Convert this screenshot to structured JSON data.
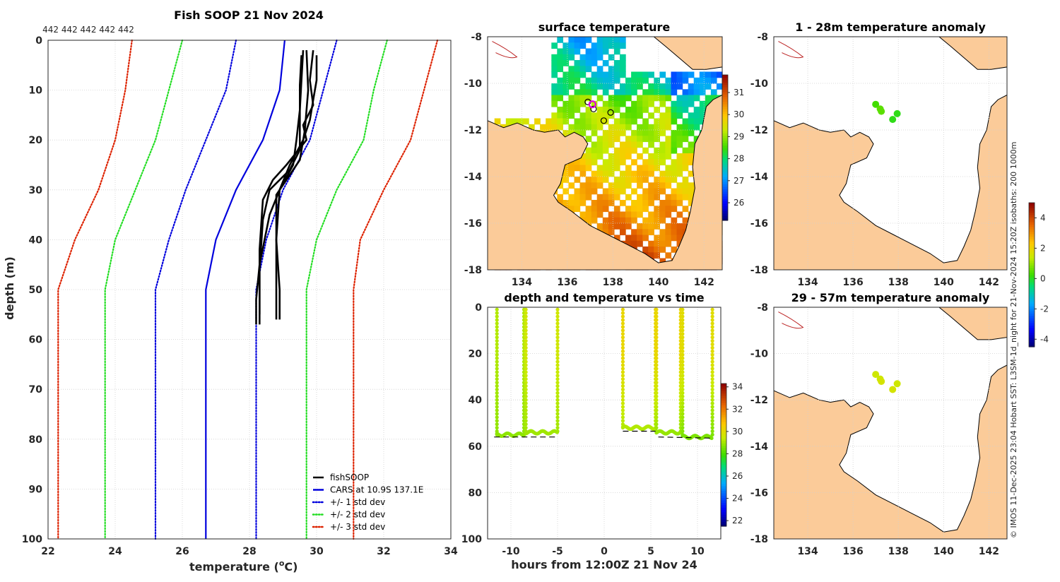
{
  "profile_chart": {
    "title": "Fish SOOP 21 Nov 2024",
    "xlabel": "temperature (",
    "xlabel_sup": "o",
    "xlabel_unit": "C)",
    "ylabel": "depth (m)",
    "profile_ids_label": "442 442 442 442 442"
  },
  "sst_map": {
    "title": "surface temperature"
  },
  "anom_map_1": {
    "title": "1 - 28m temperature anomaly"
  },
  "anom_map_2": {
    "title": "29 - 57m temperature anomaly"
  },
  "time_chart": {
    "title": "depth and temperature vs time",
    "xlabel": "hours from 12:00Z 21 Nov 24"
  },
  "credit": "© IMOS 11-Dec-2025 23:04 Hobart SST: L3SM-1d_night for 21-Nov-2024 15:20Z isobaths: 200  1000m",
  "chart_data": [
    {
      "type": "line",
      "title": "Fish SOOP 21 Nov 2024",
      "xlabel": "temperature (oC)",
      "ylabel": "depth (m)",
      "xlim": [
        22,
        34
      ],
      "ylim": [
        0,
        100
      ],
      "y_reversed": true,
      "xticks": [
        22,
        24,
        26,
        28,
        30,
        32,
        34
      ],
      "yticks": [
        0,
        10,
        20,
        30,
        40,
        50,
        60,
        70,
        80,
        90,
        100
      ],
      "legend": [
        "fishSOOP",
        "CARS at 10.9S 137.1E",
        "+/- 1 std dev",
        "+/- 2 std dev",
        "+/- 3 std dev"
      ],
      "series": [
        {
          "name": "CARS at 10.9S 137.1E",
          "color": "#0000dd",
          "style": "solid",
          "points": [
            [
              29.05,
              0
            ],
            [
              28.9,
              10
            ],
            [
              28.4,
              20
            ],
            [
              27.6,
              30
            ],
            [
              27.0,
              40
            ],
            [
              26.7,
              50
            ],
            [
              26.7,
              100
            ]
          ]
        },
        {
          "name": "-1 std dev",
          "color": "#0000dd",
          "style": "dotted",
          "points": [
            [
              27.6,
              0
            ],
            [
              27.3,
              10
            ],
            [
              26.7,
              20
            ],
            [
              26.1,
              30
            ],
            [
              25.6,
              40
            ],
            [
              25.2,
              50
            ],
            [
              25.2,
              100
            ]
          ]
        },
        {
          "name": "+1 std dev",
          "color": "#0000dd",
          "style": "dotted",
          "points": [
            [
              30.6,
              0
            ],
            [
              30.2,
              10
            ],
            [
              29.8,
              20
            ],
            [
              29.0,
              30
            ],
            [
              28.5,
              40
            ],
            [
              28.2,
              50
            ],
            [
              28.2,
              100
            ]
          ]
        },
        {
          "name": "-2 std dev",
          "color": "#22dd22",
          "style": "dotted",
          "points": [
            [
              26.0,
              0
            ],
            [
              25.8,
              5
            ],
            [
              25.6,
              10
            ],
            [
              25.2,
              20
            ],
            [
              24.6,
              30
            ],
            [
              24.0,
              40
            ],
            [
              23.7,
              50
            ],
            [
              23.7,
              100
            ]
          ]
        },
        {
          "name": "+2 std dev",
          "color": "#22dd22",
          "style": "dotted",
          "points": [
            [
              32.1,
              0
            ],
            [
              31.9,
              5
            ],
            [
              31.7,
              10
            ],
            [
              31.4,
              20
            ],
            [
              30.6,
              30
            ],
            [
              30.0,
              40
            ],
            [
              29.7,
              50
            ],
            [
              29.7,
              100
            ]
          ]
        },
        {
          "name": "-3 std dev",
          "color": "#dd2200",
          "style": "dotted",
          "points": [
            [
              24.5,
              0
            ],
            [
              24.4,
              5
            ],
            [
              24.3,
              10
            ],
            [
              24.0,
              20
            ],
            [
              23.5,
              30
            ],
            [
              22.8,
              40
            ],
            [
              22.3,
              50
            ],
            [
              22.3,
              100
            ]
          ]
        },
        {
          "name": "+3 std dev",
          "color": "#dd2200",
          "style": "dotted",
          "points": [
            [
              33.6,
              0
            ],
            [
              33.4,
              5
            ],
            [
              33.2,
              10
            ],
            [
              32.8,
              20
            ],
            [
              32.0,
              30
            ],
            [
              31.3,
              40
            ],
            [
              31.1,
              50
            ],
            [
              31.1,
              100
            ]
          ]
        },
        {
          "name": "fishSOOP profile 1",
          "color": "#000000",
          "style": "solid",
          "points": [
            [
              29.6,
              2
            ],
            [
              29.55,
              8
            ],
            [
              29.5,
              14
            ],
            [
              29.4,
              20
            ],
            [
              29.3,
              25
            ],
            [
              28.9,
              30
            ],
            [
              28.6,
              35
            ],
            [
              28.3,
              45
            ],
            [
              28.2,
              52
            ],
            [
              28.2,
              57
            ]
          ]
        },
        {
          "name": "fishSOOP profile 2",
          "color": "#000000",
          "style": "solid",
          "points": [
            [
              29.7,
              2
            ],
            [
              29.75,
              10
            ],
            [
              29.65,
              18
            ],
            [
              29.5,
              24
            ],
            [
              29.1,
              28
            ],
            [
              28.8,
              31
            ],
            [
              28.8,
              40
            ],
            [
              28.8,
              50
            ],
            [
              28.8,
              56
            ]
          ]
        },
        {
          "name": "fishSOOP profile 3",
          "color": "#000000",
          "style": "solid",
          "points": [
            [
              29.9,
              2
            ],
            [
              29.8,
              8
            ],
            [
              29.9,
              13
            ],
            [
              29.6,
              17
            ],
            [
              29.7,
              20
            ],
            [
              29.1,
              25
            ],
            [
              28.7,
              28
            ],
            [
              28.4,
              32
            ],
            [
              28.3,
              42
            ],
            [
              28.3,
              50
            ],
            [
              28.3,
              57
            ]
          ]
        },
        {
          "name": "fishSOOP profile 4",
          "color": "#000000",
          "style": "solid",
          "points": [
            [
              30.0,
              3
            ],
            [
              30.0,
              8
            ],
            [
              29.9,
              12
            ],
            [
              29.8,
              16
            ],
            [
              29.6,
              20
            ],
            [
              29.2,
              25
            ],
            [
              28.9,
              30
            ],
            [
              28.8,
              40
            ],
            [
              28.9,
              50
            ],
            [
              28.9,
              56
            ]
          ]
        },
        {
          "name": "fishSOOP profile 5",
          "color": "#000000",
          "style": "solid",
          "points": [
            [
              29.55,
              3
            ],
            [
              29.5,
              9
            ],
            [
              29.5,
              16
            ],
            [
              29.5,
              22
            ],
            [
              29.2,
              26
            ],
            [
              28.6,
              30
            ],
            [
              28.4,
              36
            ],
            [
              28.3,
              46
            ],
            [
              28.3,
              55
            ]
          ]
        }
      ]
    },
    {
      "type": "heatmap",
      "title": "surface temperature",
      "xlim": [
        132.5,
        142.8
      ],
      "ylim": [
        -18,
        -8
      ],
      "xticks": [
        134,
        136,
        138,
        140,
        142
      ],
      "yticks": [
        -8,
        -10,
        -12,
        -14,
        -16,
        -18
      ],
      "colorbar": {
        "ticks": [
          26,
          27,
          28,
          29,
          30,
          31
        ],
        "range": [
          25.2,
          31.8
        ]
      },
      "stations": [
        [
          136.9,
          -10.8
        ],
        [
          137.15,
          -11.1
        ],
        [
          137.6,
          -11.6
        ],
        [
          137.9,
          -11.25
        ]
      ],
      "highlight_station": [
        137.1,
        -10.9
      ]
    },
    {
      "type": "scatter",
      "title": "1 - 28m temperature anomaly",
      "xlim": [
        132.5,
        142.8
      ],
      "ylim": [
        -18,
        -8
      ],
      "xticks": [
        134,
        136,
        138,
        140,
        142
      ],
      "yticks": [
        -8,
        -10,
        -12,
        -14,
        -16,
        -18
      ],
      "colorbar": {
        "ticks": [
          -4,
          -2,
          0,
          2,
          4
        ],
        "range": [
          -4.5,
          5
        ]
      },
      "points": [
        [
          137.0,
          -10.9,
          0.3
        ],
        [
          137.2,
          -11.1,
          0.5
        ],
        [
          137.25,
          -11.2,
          0.5
        ],
        [
          137.75,
          -11.55,
          0.1
        ],
        [
          137.95,
          -11.3,
          0.1
        ]
      ]
    },
    {
      "type": "scatter",
      "title": "29 - 57m temperature anomaly",
      "xlim": [
        132.5,
        142.8
      ],
      "ylim": [
        -18,
        -8
      ],
      "xticks": [
        134,
        136,
        138,
        140,
        142
      ],
      "yticks": [
        -8,
        -10,
        -12,
        -14,
        -16,
        -18
      ],
      "colorbar": {
        "ticks": [
          -4,
          -2,
          0,
          2,
          4
        ],
        "range": [
          -4.5,
          5
        ]
      },
      "points": [
        [
          137.0,
          -10.9,
          1.5
        ],
        [
          137.2,
          -11.1,
          1.5
        ],
        [
          137.25,
          -11.2,
          1.6
        ],
        [
          137.75,
          -11.55,
          1.6
        ],
        [
          137.95,
          -11.3,
          1.5
        ]
      ]
    },
    {
      "type": "scatter",
      "title": "depth and temperature vs time",
      "xlabel": "hours from 12:00Z 21 Nov 24",
      "xlim": [
        -12.5,
        12.5
      ],
      "ylim": [
        0,
        100
      ],
      "y_reversed": true,
      "xticks": [
        -10,
        -5,
        0,
        5,
        10
      ],
      "yticks": [
        0,
        20,
        40,
        60,
        80,
        100
      ],
      "colorbar": {
        "ticks": [
          22,
          24,
          26,
          28,
          30,
          32,
          34
        ],
        "range": [
          21.5,
          34.3
        ]
      },
      "casts": [
        {
          "start": -11.5,
          "end": -8.6,
          "surface_temp": 29.2,
          "bottom_temp": 28.8,
          "bottom_depth": 55
        },
        {
          "start": -8.4,
          "end": -5.0,
          "surface_temp": 29.6,
          "bottom_temp": 29.0,
          "bottom_depth": 54
        },
        {
          "start": 2.0,
          "end": 5.5,
          "surface_temp": 30.2,
          "bottom_temp": 29.2,
          "bottom_depth": 52
        },
        {
          "start": 5.6,
          "end": 8.2,
          "surface_temp": 30.2,
          "bottom_temp": 28.9,
          "bottom_depth": 54
        },
        {
          "start": 8.4,
          "end": 11.6,
          "surface_temp": 30.0,
          "bottom_temp": 28.6,
          "bottom_depth": 56
        }
      ],
      "seafloor": [
        [
          -11.8,
          56
        ],
        [
          -5.0,
          56
        ],
        [
          2.0,
          53.5
        ],
        [
          5.5,
          53.5
        ],
        [
          5.8,
          56
        ],
        [
          11.6,
          56.5
        ]
      ]
    }
  ]
}
